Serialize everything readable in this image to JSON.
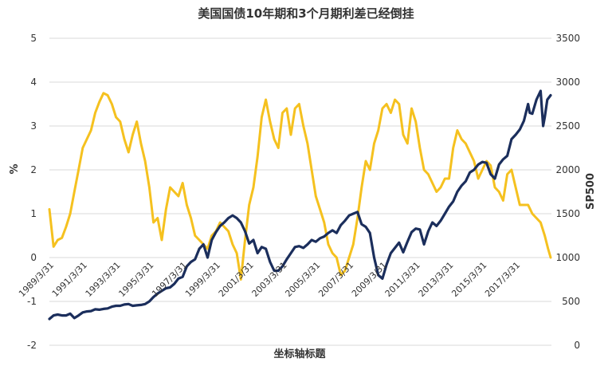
{
  "chart_data": {
    "type": "line",
    "title": "美国国债10年期和3个月期利差已经倒挂",
    "xlabel": "坐标轴标题",
    "ylabel_left": "%",
    "ylabel_right": "SP500",
    "ylim_left": [
      -2,
      5
    ],
    "ylim_right": [
      0,
      3500
    ],
    "yticks_left": [
      "-2",
      "-1",
      "0",
      "1",
      "2",
      "3",
      "4",
      "5"
    ],
    "yticks_right": [
      "0",
      "500",
      "1000",
      "1500",
      "2000",
      "2500",
      "3000",
      "3500"
    ],
    "x_range": [
      1989.25,
      2019.4
    ],
    "xticks": [
      "1989/3/31",
      "1991/3/31",
      "1993/3/31",
      "1995/3/31",
      "1997/3/31",
      "1999/3/31",
      "2001/3/31",
      "2003/3/31",
      "2005/3/31",
      "2007/3/31",
      "2009/3/31",
      "2011/3/31",
      "2013/3/31",
      "2015/3/31",
      "2017/3/31"
    ],
    "grid": true,
    "series": [
      {
        "axis": "left",
        "color": "#F5C11F",
        "points": [
          [
            1989.25,
            1.1
          ],
          [
            1989.5,
            0.25
          ],
          [
            1989.75,
            0.4
          ],
          [
            1990.0,
            0.45
          ],
          [
            1990.25,
            0.7
          ],
          [
            1990.5,
            1.0
          ],
          [
            1990.75,
            1.5
          ],
          [
            1991.0,
            2.0
          ],
          [
            1991.25,
            2.5
          ],
          [
            1991.5,
            2.7
          ],
          [
            1991.75,
            2.9
          ],
          [
            1992.0,
            3.3
          ],
          [
            1992.25,
            3.55
          ],
          [
            1992.5,
            3.75
          ],
          [
            1992.75,
            3.7
          ],
          [
            1993.0,
            3.5
          ],
          [
            1993.25,
            3.2
          ],
          [
            1993.5,
            3.1
          ],
          [
            1993.75,
            2.7
          ],
          [
            1994.0,
            2.4
          ],
          [
            1994.25,
            2.8
          ],
          [
            1994.5,
            3.1
          ],
          [
            1994.75,
            2.6
          ],
          [
            1995.0,
            2.2
          ],
          [
            1995.25,
            1.6
          ],
          [
            1995.5,
            0.8
          ],
          [
            1995.75,
            0.9
          ],
          [
            1996.0,
            0.4
          ],
          [
            1996.25,
            1.1
          ],
          [
            1996.5,
            1.6
          ],
          [
            1996.75,
            1.5
          ],
          [
            1997.0,
            1.4
          ],
          [
            1997.25,
            1.7
          ],
          [
            1997.5,
            1.2
          ],
          [
            1997.75,
            0.9
          ],
          [
            1998.0,
            0.5
          ],
          [
            1998.25,
            0.4
          ],
          [
            1998.5,
            0.3
          ],
          [
            1998.75,
            0.2
          ],
          [
            1999.0,
            0.5
          ],
          [
            1999.25,
            0.6
          ],
          [
            1999.5,
            0.8
          ],
          [
            1999.75,
            0.7
          ],
          [
            2000.0,
            0.6
          ],
          [
            2000.25,
            0.3
          ],
          [
            2000.5,
            0.1
          ],
          [
            2000.75,
            -0.5
          ],
          [
            2001.0,
            0.4
          ],
          [
            2001.25,
            1.2
          ],
          [
            2001.5,
            1.6
          ],
          [
            2001.75,
            2.3
          ],
          [
            2002.0,
            3.2
          ],
          [
            2002.25,
            3.6
          ],
          [
            2002.5,
            3.1
          ],
          [
            2002.75,
            2.7
          ],
          [
            2003.0,
            2.5
          ],
          [
            2003.25,
            3.3
          ],
          [
            2003.5,
            3.4
          ],
          [
            2003.75,
            2.8
          ],
          [
            2004.0,
            3.4
          ],
          [
            2004.25,
            3.5
          ],
          [
            2004.5,
            3.0
          ],
          [
            2004.75,
            2.6
          ],
          [
            2005.0,
            2.0
          ],
          [
            2005.25,
            1.4
          ],
          [
            2005.5,
            1.1
          ],
          [
            2005.75,
            0.8
          ],
          [
            2006.0,
            0.3
          ],
          [
            2006.25,
            0.1
          ],
          [
            2006.5,
            0.0
          ],
          [
            2006.75,
            -0.4
          ],
          [
            2007.0,
            -0.3
          ],
          [
            2007.25,
            0.0
          ],
          [
            2007.5,
            0.3
          ],
          [
            2007.75,
            0.9
          ],
          [
            2008.0,
            1.6
          ],
          [
            2008.25,
            2.2
          ],
          [
            2008.5,
            2.0
          ],
          [
            2008.75,
            2.6
          ],
          [
            2009.0,
            2.9
          ],
          [
            2009.25,
            3.4
          ],
          [
            2009.5,
            3.5
          ],
          [
            2009.75,
            3.3
          ],
          [
            2010.0,
            3.6
          ],
          [
            2010.25,
            3.5
          ],
          [
            2010.5,
            2.8
          ],
          [
            2010.75,
            2.6
          ],
          [
            2011.0,
            3.4
          ],
          [
            2011.25,
            3.1
          ],
          [
            2011.5,
            2.5
          ],
          [
            2011.75,
            2.0
          ],
          [
            2012.0,
            1.9
          ],
          [
            2012.25,
            1.7
          ],
          [
            2012.5,
            1.5
          ],
          [
            2012.75,
            1.6
          ],
          [
            2013.0,
            1.8
          ],
          [
            2013.25,
            1.8
          ],
          [
            2013.5,
            2.5
          ],
          [
            2013.75,
            2.9
          ],
          [
            2014.0,
            2.7
          ],
          [
            2014.25,
            2.6
          ],
          [
            2014.5,
            2.4
          ],
          [
            2014.75,
            2.2
          ],
          [
            2015.0,
            1.8
          ],
          [
            2015.25,
            2.0
          ],
          [
            2015.5,
            2.2
          ],
          [
            2015.75,
            2.1
          ],
          [
            2016.0,
            1.6
          ],
          [
            2016.25,
            1.5
          ],
          [
            2016.5,
            1.3
          ],
          [
            2016.75,
            1.9
          ],
          [
            2017.0,
            2.0
          ],
          [
            2017.25,
            1.6
          ],
          [
            2017.5,
            1.2
          ],
          [
            2017.75,
            1.2
          ],
          [
            2018.0,
            1.2
          ],
          [
            2018.25,
            1.0
          ],
          [
            2018.5,
            0.9
          ],
          [
            2018.75,
            0.8
          ],
          [
            2019.0,
            0.5
          ],
          [
            2019.2,
            0.2
          ],
          [
            2019.35,
            0.0
          ]
        ]
      },
      {
        "axis": "right",
        "color": "#1B2E5C",
        "points": [
          [
            1989.25,
            300
          ],
          [
            1989.5,
            340
          ],
          [
            1989.75,
            350
          ],
          [
            1990.0,
            340
          ],
          [
            1990.25,
            340
          ],
          [
            1990.5,
            360
          ],
          [
            1990.75,
            310
          ],
          [
            1991.0,
            340
          ],
          [
            1991.25,
            375
          ],
          [
            1991.5,
            385
          ],
          [
            1991.75,
            390
          ],
          [
            1992.0,
            410
          ],
          [
            1992.25,
            405
          ],
          [
            1992.5,
            415
          ],
          [
            1992.75,
            420
          ],
          [
            1993.0,
            440
          ],
          [
            1993.25,
            450
          ],
          [
            1993.5,
            450
          ],
          [
            1993.75,
            465
          ],
          [
            1994.0,
            470
          ],
          [
            1994.25,
            450
          ],
          [
            1994.5,
            455
          ],
          [
            1994.75,
            460
          ],
          [
            1995.0,
            470
          ],
          [
            1995.25,
            500
          ],
          [
            1995.5,
            550
          ],
          [
            1995.75,
            590
          ],
          [
            1996.0,
            620
          ],
          [
            1996.25,
            650
          ],
          [
            1996.5,
            660
          ],
          [
            1996.75,
            700
          ],
          [
            1997.0,
            760
          ],
          [
            1997.25,
            780
          ],
          [
            1997.5,
            900
          ],
          [
            1997.75,
            950
          ],
          [
            1998.0,
            980
          ],
          [
            1998.25,
            1100
          ],
          [
            1998.5,
            1150
          ],
          [
            1998.75,
            1000
          ],
          [
            1999.0,
            1200
          ],
          [
            1999.25,
            1290
          ],
          [
            1999.5,
            1360
          ],
          [
            1999.75,
            1400
          ],
          [
            2000.0,
            1450
          ],
          [
            2000.25,
            1480
          ],
          [
            2000.5,
            1450
          ],
          [
            2000.75,
            1400
          ],
          [
            2001.0,
            1300
          ],
          [
            2001.25,
            1160
          ],
          [
            2001.5,
            1200
          ],
          [
            2001.75,
            1050
          ],
          [
            2002.0,
            1120
          ],
          [
            2002.25,
            1100
          ],
          [
            2002.5,
            950
          ],
          [
            2002.75,
            850
          ],
          [
            2003.0,
            850
          ],
          [
            2003.25,
            900
          ],
          [
            2003.5,
            980
          ],
          [
            2003.75,
            1050
          ],
          [
            2004.0,
            1120
          ],
          [
            2004.25,
            1130
          ],
          [
            2004.5,
            1110
          ],
          [
            2004.75,
            1150
          ],
          [
            2005.0,
            1200
          ],
          [
            2005.25,
            1180
          ],
          [
            2005.5,
            1220
          ],
          [
            2005.75,
            1240
          ],
          [
            2006.0,
            1280
          ],
          [
            2006.25,
            1310
          ],
          [
            2006.5,
            1280
          ],
          [
            2006.75,
            1370
          ],
          [
            2007.0,
            1420
          ],
          [
            2007.25,
            1480
          ],
          [
            2007.5,
            1500
          ],
          [
            2007.75,
            1520
          ],
          [
            2008.0,
            1380
          ],
          [
            2008.25,
            1350
          ],
          [
            2008.5,
            1280
          ],
          [
            2008.75,
            1000
          ],
          [
            2009.0,
            800
          ],
          [
            2009.25,
            760
          ],
          [
            2009.5,
            920
          ],
          [
            2009.75,
            1050
          ],
          [
            2010.0,
            1110
          ],
          [
            2010.25,
            1170
          ],
          [
            2010.5,
            1060
          ],
          [
            2010.75,
            1180
          ],
          [
            2011.0,
            1290
          ],
          [
            2011.25,
            1330
          ],
          [
            2011.5,
            1320
          ],
          [
            2011.75,
            1150
          ],
          [
            2012.0,
            1300
          ],
          [
            2012.25,
            1400
          ],
          [
            2012.5,
            1360
          ],
          [
            2012.75,
            1420
          ],
          [
            2013.0,
            1500
          ],
          [
            2013.25,
            1580
          ],
          [
            2013.5,
            1640
          ],
          [
            2013.75,
            1750
          ],
          [
            2014.0,
            1820
          ],
          [
            2014.25,
            1870
          ],
          [
            2014.5,
            1970
          ],
          [
            2014.75,
            2000
          ],
          [
            2015.0,
            2060
          ],
          [
            2015.25,
            2090
          ],
          [
            2015.5,
            2080
          ],
          [
            2015.75,
            1950
          ],
          [
            2016.0,
            1900
          ],
          [
            2016.25,
            2060
          ],
          [
            2016.5,
            2120
          ],
          [
            2016.75,
            2160
          ],
          [
            2017.0,
            2350
          ],
          [
            2017.25,
            2400
          ],
          [
            2017.5,
            2460
          ],
          [
            2017.75,
            2560
          ],
          [
            2018.0,
            2750
          ],
          [
            2018.1,
            2650
          ],
          [
            2018.25,
            2640
          ],
          [
            2018.5,
            2800
          ],
          [
            2018.75,
            2900
          ],
          [
            2018.9,
            2500
          ],
          [
            2019.0,
            2600
          ],
          [
            2019.15,
            2800
          ],
          [
            2019.35,
            2850
          ]
        ]
      }
    ]
  }
}
